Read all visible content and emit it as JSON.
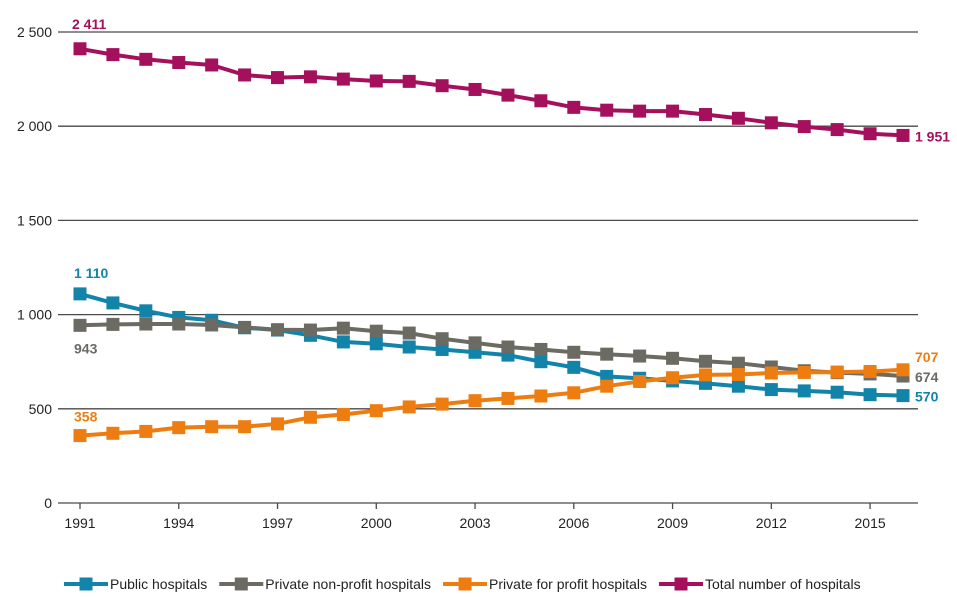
{
  "chart_data": {
    "type": "line",
    "x": [
      1991,
      1992,
      1993,
      1994,
      1995,
      1996,
      1997,
      1998,
      1999,
      2000,
      2001,
      2002,
      2003,
      2004,
      2005,
      2006,
      2007,
      2008,
      2009,
      2010,
      2011,
      2012,
      2013,
      2014,
      2015,
      2016
    ],
    "x_ticks": [
      "1991",
      "1994",
      "1997",
      "2000",
      "2003",
      "2006",
      "2009",
      "2012",
      "2015"
    ],
    "y_ticks": [
      {
        "value": 0,
        "label": "0"
      },
      {
        "value": 500,
        "label": "500"
      },
      {
        "value": 1000,
        "label": "1 000"
      },
      {
        "value": 1500,
        "label": "1 500"
      },
      {
        "value": 2000,
        "label": "2 000"
      },
      {
        "value": 2500,
        "label": "2 500"
      }
    ],
    "ylim": [
      0,
      2500
    ],
    "grid": true,
    "legend_position": "bottom",
    "series": [
      {
        "name": "Public hospitals",
        "color": "#1283a9",
        "values": [
          1110,
          1062,
          1020,
          985,
          970,
          930,
          918,
          890,
          855,
          845,
          828,
          815,
          800,
          785,
          750,
          720,
          672,
          662,
          648,
          635,
          620,
          602,
          595,
          588,
          575,
          570
        ],
        "labels": [
          {
            "index": 0,
            "text": "1 110"
          },
          {
            "index": 25,
            "text": "570"
          }
        ]
      },
      {
        "name": "Private non-profit hospitals",
        "color": "#6b6b63",
        "values": [
          943,
          948,
          950,
          950,
          945,
          932,
          920,
          918,
          928,
          912,
          902,
          872,
          850,
          828,
          815,
          800,
          790,
          780,
          768,
          752,
          742,
          722,
          702,
          692,
          685,
          674
        ],
        "labels": [
          {
            "index": 0,
            "text": "943"
          },
          {
            "index": 25,
            "text": "674"
          }
        ]
      },
      {
        "name": "Private for profit hospitals",
        "color": "#ee7d11",
        "values": [
          358,
          370,
          380,
          400,
          405,
          405,
          420,
          455,
          470,
          490,
          510,
          525,
          543,
          555,
          568,
          585,
          620,
          645,
          665,
          680,
          682,
          690,
          693,
          695,
          698,
          707
        ],
        "labels": [
          {
            "index": 0,
            "text": "358"
          },
          {
            "index": 25,
            "text": "707"
          }
        ]
      },
      {
        "name": "Total number of hospitals",
        "color": "#a5105c",
        "values": [
          2411,
          2380,
          2355,
          2338,
          2325,
          2272,
          2258,
          2262,
          2250,
          2240,
          2238,
          2215,
          2195,
          2165,
          2135,
          2100,
          2085,
          2080,
          2080,
          2062,
          2042,
          2018,
          1998,
          1982,
          1960,
          1951
        ],
        "labels": [
          {
            "index": 0,
            "text": "2 411"
          },
          {
            "index": 25,
            "text": "1 951"
          }
        ]
      }
    ]
  }
}
